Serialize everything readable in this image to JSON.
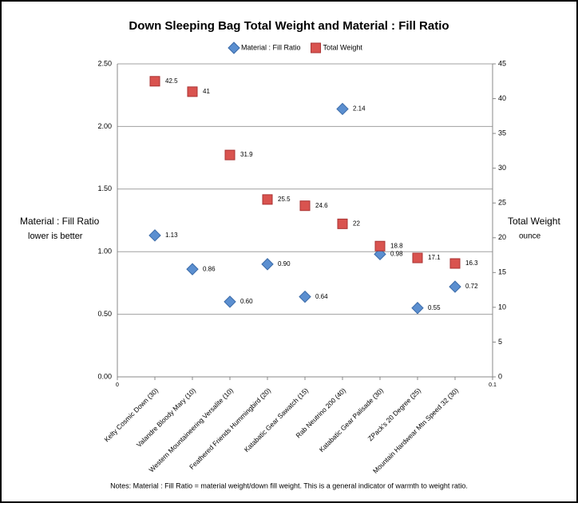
{
  "chart_data": {
    "type": "scatter",
    "title": "Down Sleeping Bag Total Weight and Material : Fill Ratio",
    "categories": [
      "Kelty Cosmic Down (30)",
      "Valandre Bloody Mary (10)",
      "Western Mountaineering Versalite (10)",
      "Feathered Friends Hummingbird (20)",
      "Katabatic Gear Sawatch (15)",
      "Rab Neutrino 200 (40)",
      "Katabatic Gear Palisade (30)",
      "ZPack's 20 Degree (25)",
      "Mountain Hardwear Mtn Speed 32 (30)"
    ],
    "series": [
      {
        "name": "Material : Fill Ratio",
        "color": "#5b8fd0",
        "marker": "diamond",
        "axis": "y",
        "values": [
          1.13,
          0.86,
          0.6,
          0.9,
          0.64,
          2.14,
          0.98,
          0.55,
          0.72
        ],
        "value_labels": [
          "1.13",
          "0.86",
          "0.60",
          "0.90",
          "0.64",
          "2.14",
          "0.98",
          "0.55",
          "0.72"
        ]
      },
      {
        "name": "Total Weight",
        "color": "#d9534f",
        "marker": "square",
        "axis": "y2",
        "values": [
          42.5,
          41,
          31.9,
          25.5,
          24.6,
          22,
          18.8,
          17.1,
          16.3
        ]
      }
    ],
    "xlim": [
      0,
      0.1
    ],
    "xticks": [
      0,
      0.1
    ],
    "ylim": [
      0,
      2.5
    ],
    "yticks": [
      {
        "value": 0,
        "label": "0.00"
      },
      {
        "value": 0.5,
        "label": "0.50"
      },
      {
        "value": 1,
        "label": "1.00"
      },
      {
        "value": 1.5,
        "label": "1.50"
      },
      {
        "value": 2,
        "label": "2.00"
      },
      {
        "value": 2.5,
        "label": "2.50"
      }
    ],
    "y2lim": [
      0,
      45
    ],
    "y2ticks": [
      0,
      5,
      10,
      15,
      20,
      25,
      30,
      35,
      40,
      45
    ],
    "ylabel": "Material : Fill Ratio",
    "ylabel_note": "lower is better",
    "y2label": "Total Weight",
    "y2label_note": "ounce",
    "grid": true,
    "note": "Notes: Material : Fill Ratio = material weight/down fill weight. This is a general indicator of warmth to weight ratio."
  }
}
